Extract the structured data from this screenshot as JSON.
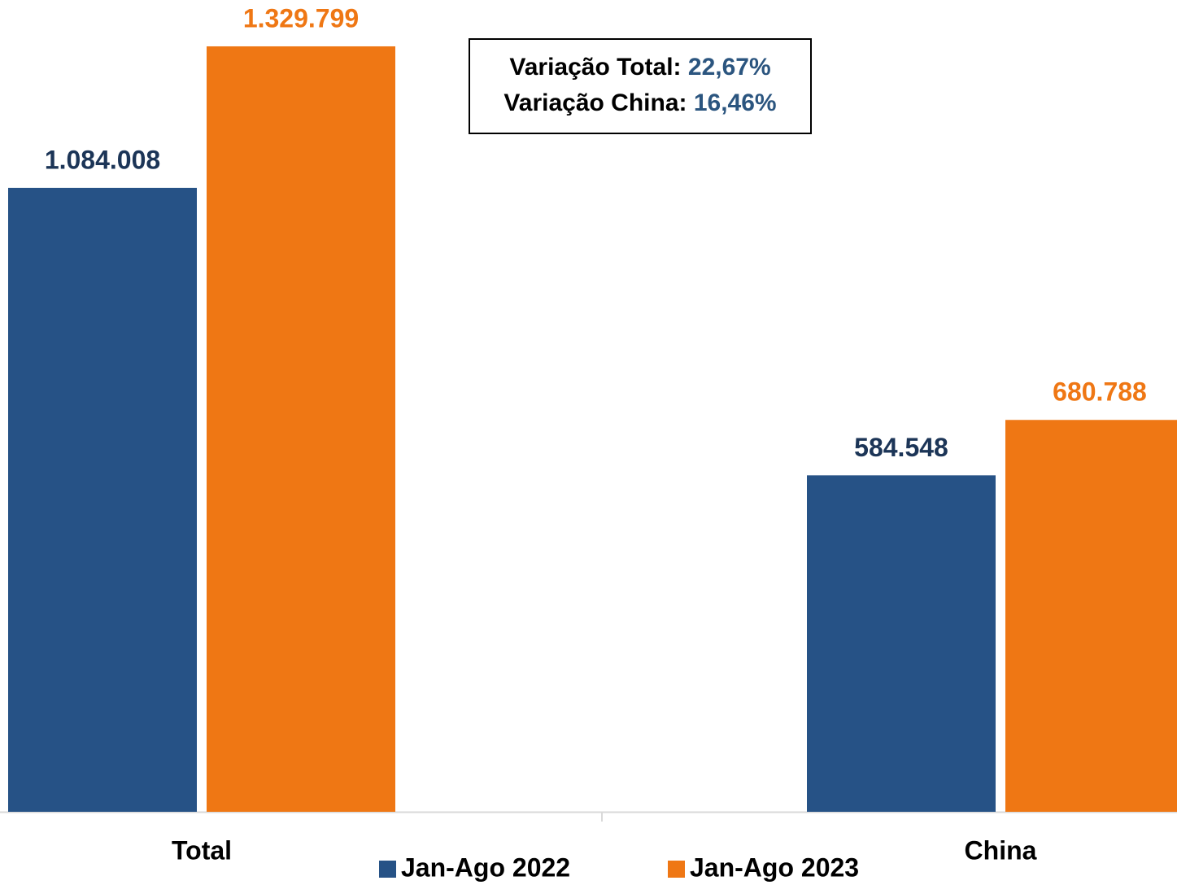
{
  "chart_data": {
    "type": "bar",
    "categories": [
      "Total",
      "China"
    ],
    "series": [
      {
        "name": "Jan-Ago 2022",
        "color": "#265286",
        "label_color": "#1c3557",
        "values": [
          1084008,
          584548
        ],
        "value_labels": [
          "1.084.008",
          "584.548"
        ]
      },
      {
        "name": "Jan-Ago 2023",
        "color": "#ef7714",
        "label_color": "#ef7714",
        "values": [
          1329799,
          680788
        ],
        "value_labels": [
          "1.329.799",
          "680.788"
        ]
      }
    ],
    "ylim": [
      0,
      1400000
    ],
    "annotations": [
      {
        "label": "Variação Total:",
        "value": "22,67%"
      },
      {
        "label": "Variação China:",
        "value": "16,46%"
      }
    ]
  }
}
